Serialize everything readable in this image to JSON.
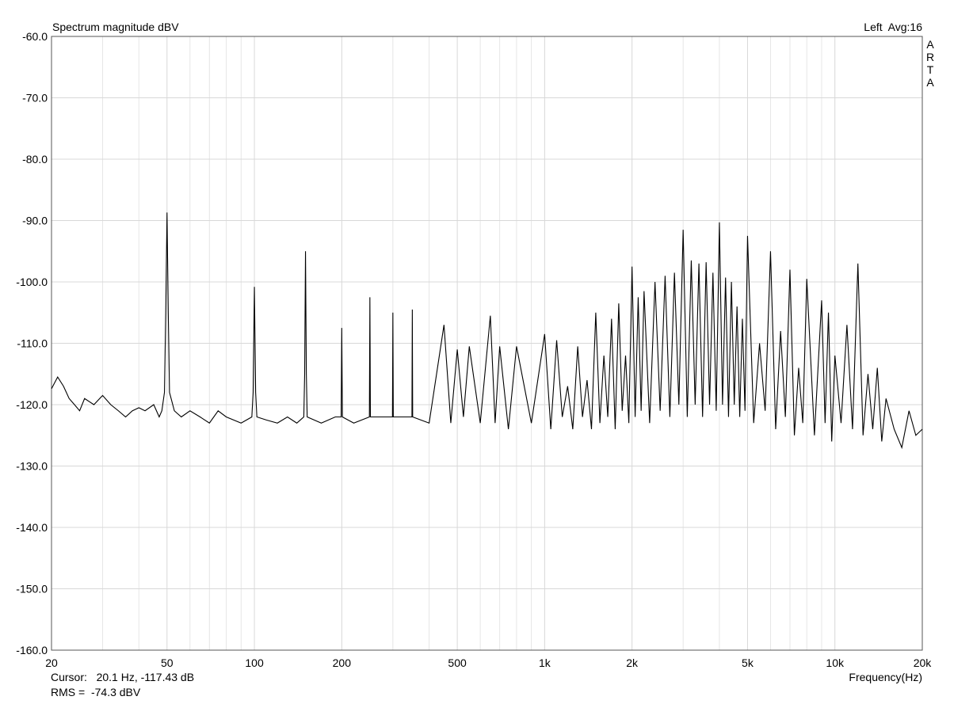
{
  "chart_data": {
    "type": "line",
    "title": "Spectrum magnitude dBV",
    "channel_info": "Left  Avg:16",
    "brand": "ARTA",
    "cursor_text": "Cursor:   20.1 Hz, -117.43 dB",
    "rms_text": "RMS =  -74.3 dBV",
    "rms_color": "#c00000",
    "x_label": "Frequency(Hz)",
    "xscale": "log",
    "grid": true,
    "xlim": [
      20,
      20000
    ],
    "ylim": [
      -160,
      -60
    ],
    "xticks": [
      20,
      50,
      100,
      200,
      500,
      {
        "value": 1000,
        "label": "1k"
      },
      {
        "value": 2000,
        "label": "2k"
      },
      {
        "value": 5000,
        "label": "5k"
      },
      {
        "value": 10000,
        "label": "10k"
      },
      {
        "value": 20000,
        "label": "20k"
      }
    ],
    "xminor": [
      30,
      40,
      60,
      70,
      80,
      90,
      300,
      400,
      600,
      700,
      800,
      900,
      3000,
      4000,
      6000,
      7000,
      8000,
      9000
    ],
    "yticks": [
      {
        "value": -60,
        "label": "-60.0"
      },
      {
        "value": -70,
        "label": "-70.0"
      },
      {
        "value": -80,
        "label": "-80.0"
      },
      {
        "value": -90,
        "label": "-90.0"
      },
      {
        "value": -100,
        "label": "-100.0"
      },
      {
        "value": -110,
        "label": "-110.0"
      },
      {
        "value": -120,
        "label": "-120.0"
      },
      {
        "value": -130,
        "label": "-130.0"
      },
      {
        "value": -140,
        "label": "-140.0"
      },
      {
        "value": -150,
        "label": "-150.0"
      },
      {
        "value": -160,
        "label": "-160.0"
      }
    ],
    "series": [
      {
        "color": "#000000",
        "x": [
          20,
          21,
          22,
          23,
          24,
          25,
          26,
          28,
          30,
          32,
          34,
          36,
          38,
          40,
          42,
          45,
          47,
          48,
          49,
          49.5,
          50,
          50.5,
          51,
          53,
          56,
          60,
          65,
          70,
          75,
          80,
          90,
          98,
          99,
          100,
          101,
          102,
          110,
          120,
          130,
          140,
          148,
          149,
          150,
          151,
          152,
          170,
          190,
          199,
          200,
          201,
          220,
          249,
          250,
          251,
          299,
          300,
          301,
          349,
          350,
          351,
          400,
          450,
          475,
          500,
          525,
          550,
          600,
          650,
          675,
          700,
          750,
          800,
          900,
          1000,
          1050,
          1100,
          1150,
          1200,
          1250,
          1300,
          1350,
          1400,
          1450,
          1500,
          1550,
          1600,
          1650,
          1700,
          1750,
          1800,
          1850,
          1900,
          1950,
          2000,
          2050,
          2100,
          2150,
          2200,
          2300,
          2400,
          2500,
          2600,
          2700,
          2800,
          2900,
          3000,
          3100,
          3200,
          3300,
          3400,
          3500,
          3600,
          3700,
          3800,
          3900,
          4000,
          4100,
          4200,
          4300,
          4400,
          4500,
          4600,
          4700,
          4800,
          4900,
          5000,
          5250,
          5500,
          5750,
          6000,
          6250,
          6500,
          6750,
          7000,
          7250,
          7500,
          7750,
          8000,
          8500,
          9000,
          9250,
          9500,
          9750,
          10000,
          10500,
          11000,
          11500,
          12000,
          12500,
          13000,
          13500,
          14000,
          14500,
          15000,
          16000,
          17000,
          18000,
          19000,
          20000
        ],
        "values": [
          -117.4,
          -115.5,
          -117,
          -119,
          -120,
          -121,
          -119,
          -120,
          -118.5,
          -120,
          -121,
          -122,
          -121,
          -120.5,
          -121,
          -120,
          -122,
          -121,
          -118,
          -105,
          -88.7,
          -105,
          -118,
          -121,
          -122,
          -121,
          -122,
          -123,
          -121,
          -122,
          -123,
          -122,
          -118,
          -100.8,
          -118,
          -122,
          -122.5,
          -123,
          -122,
          -123,
          -122,
          -115,
          -95,
          -115,
          -122,
          -123,
          -122,
          -122,
          -107.5,
          -122,
          -123,
          -122,
          -102.5,
          -122,
          -122,
          -105,
          -122,
          -122,
          -104.5,
          -122,
          -123,
          -107,
          -123,
          -111,
          -122,
          -110.5,
          -123,
          -105.5,
          -123,
          -110.5,
          -124,
          -110.5,
          -123,
          -108.5,
          -124,
          -109.5,
          -122,
          -117,
          -124,
          -110.5,
          -122,
          -116,
          -124,
          -105,
          -123,
          -112,
          -122,
          -106,
          -124,
          -103.5,
          -121,
          -112,
          -123,
          -97.5,
          -122,
          -102.5,
          -121,
          -101.5,
          -123,
          -100,
          -121,
          -99,
          -122,
          -98.5,
          -120,
          -91.5,
          -122,
          -96.5,
          -120,
          -97,
          -122,
          -96.8,
          -120,
          -98.5,
          -121,
          -90.3,
          -120,
          -99.3,
          -122,
          -100,
          -120,
          -104,
          -122,
          -106,
          -121,
          -92.5,
          -123,
          -110,
          -121,
          -95,
          -124,
          -108,
          -122,
          -98,
          -125,
          -114,
          -123,
          -99.5,
          -125,
          -103,
          -123,
          -105,
          -126,
          -112,
          -123,
          -107,
          -124,
          -97,
          -125,
          -115,
          -124,
          -114,
          -126,
          -119,
          -124,
          -127,
          -121,
          -125,
          -124
        ]
      }
    ]
  }
}
